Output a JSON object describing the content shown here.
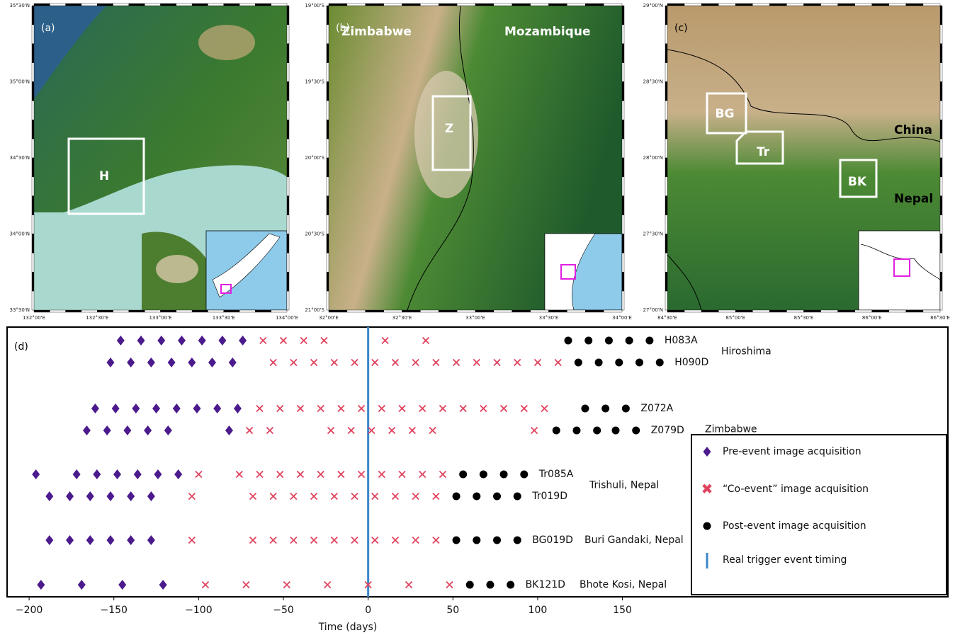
{
  "maps": [
    {
      "panel": "(a)",
      "lat_ticks": [
        "35°30'N",
        "35°00'N",
        "34°30'N",
        "34°00'N",
        "33°30'N"
      ],
      "lon_ticks": [
        "132°00'E",
        "132°30'E",
        "133°00'E",
        "133°30'E",
        "134°00'E"
      ],
      "boxes": [
        "H"
      ]
    },
    {
      "panel": "(b)",
      "lat_ticks": [
        "19°00'S",
        "19°30'S",
        "20°00'S",
        "20°30'S",
        "21°00'S"
      ],
      "lon_ticks": [
        "32°00'E",
        "32°30'E",
        "33°00'E",
        "33°30'E",
        "34°00'E"
      ],
      "places": [
        "Zimbabwe",
        "Mozambique"
      ],
      "boxes": [
        "Z"
      ]
    },
    {
      "panel": "(c)",
      "lat_ticks": [
        "29°00'N",
        "28°30'N",
        "28°00'N",
        "27°30'N",
        "27°00'N"
      ],
      "lon_ticks": [
        "84°30'E",
        "85°00'E",
        "85°30'E",
        "86°00'E",
        "86°30'E"
      ],
      "places": [
        "China",
        "Nepal"
      ],
      "boxes": [
        "BG",
        "Tr",
        "BK"
      ]
    }
  ],
  "chart_data": {
    "type": "timeline",
    "panel": "(d)",
    "xlabel": "Time (days)",
    "xlim": [
      -213,
      342
    ],
    "xticks": [
      {
        "value": -200,
        "label": "−200"
      },
      {
        "value": -150,
        "label": "−150"
      },
      {
        "value": -100,
        "label": "−100"
      },
      {
        "value": -50,
        "label": "−50"
      },
      0,
      50,
      100,
      150
    ],
    "groups": [
      {
        "name": "Hiroshima",
        "tracks": [
          "H083A",
          "H090D"
        ]
      },
      {
        "name": "Zimbabwe",
        "tracks": [
          "Z072A",
          "Z079D"
        ]
      },
      {
        "name": "Trishuli, Nepal",
        "tracks": [
          "Tr085A",
          "Tr019D"
        ]
      },
      {
        "name": "Buri Gandaki, Nepal",
        "tracks": [
          "BG019D"
        ]
      },
      {
        "name": "Bhote Kosi, Nepal",
        "tracks": [
          "BK121D"
        ]
      }
    ],
    "series": [
      {
        "name": "Pre-event image acquisition",
        "color": "#4b1a8c",
        "marker": "diamond",
        "values": [
          [
            -146,
            -134,
            -122,
            -110,
            -98,
            -86,
            -74
          ],
          [
            -152,
            -140,
            -128,
            -116,
            -104,
            -92,
            -80
          ],
          [
            -161,
            -149,
            -137,
            -125,
            -113,
            -101,
            -89,
            -77
          ],
          [
            -166,
            -154,
            -142,
            -130,
            -118,
            -82
          ],
          [
            -196,
            -172,
            -160,
            -148,
            -136,
            -124,
            -112
          ],
          [
            -188,
            -176,
            -164,
            -152,
            -140,
            -128
          ],
          [
            -188,
            -176,
            -164,
            -152,
            -140,
            -128
          ],
          [
            -193,
            -169,
            -145,
            -121
          ]
        ]
      },
      {
        "name": "“Co-event” image acquisition",
        "color": "#e0435f",
        "marker": "cross",
        "values": [
          [
            -62,
            -50,
            -38,
            -26,
            10,
            34
          ],
          [
            -56,
            -44,
            -32,
            -20,
            -8,
            4,
            16,
            28,
            40,
            52,
            64,
            76,
            88,
            100,
            112
          ],
          [
            -64,
            -52,
            -40,
            -28,
            -16,
            -4,
            8,
            20,
            32,
            44,
            56,
            68,
            80,
            92,
            104
          ],
          [
            -70,
            -58,
            -22,
            -10,
            2,
            14,
            26,
            38,
            98
          ],
          [
            -100,
            -76,
            -64,
            -52,
            -40,
            -28,
            -16,
            -4,
            8,
            20,
            32,
            44
          ],
          [
            -104,
            -68,
            -56,
            -44,
            -32,
            -20,
            -8,
            4,
            16,
            28,
            40
          ],
          [
            -104,
            -68,
            -56,
            -44,
            -32,
            -20,
            -8,
            4,
            16,
            28,
            40
          ],
          [
            -96,
            -72,
            -48,
            -24,
            0,
            24,
            48
          ]
        ]
      },
      {
        "name": "Post-event image acquisition",
        "color": "#000000",
        "marker": "circle",
        "values": [
          [
            118,
            130,
            142,
            154,
            166
          ],
          [
            124,
            136,
            148,
            160,
            172
          ],
          [
            128,
            140,
            152
          ],
          [
            111,
            123,
            135,
            146,
            158
          ],
          [
            56,
            68,
            80,
            92
          ],
          [
            52,
            64,
            76,
            88
          ],
          [
            52,
            64,
            76,
            88
          ],
          [
            60,
            72,
            84
          ]
        ]
      }
    ],
    "event": {
      "name": "Real trigger event timing",
      "x": 0,
      "color": "#3a86c8"
    }
  }
}
